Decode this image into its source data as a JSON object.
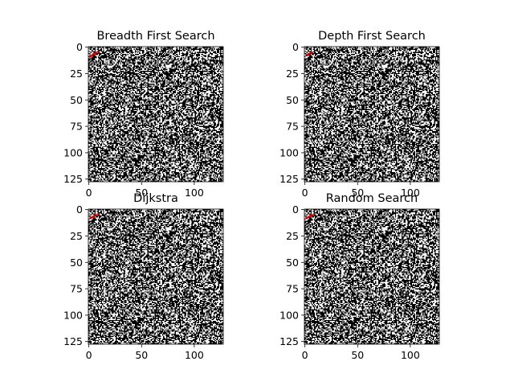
{
  "chart_data": [
    {
      "type": "heatmap",
      "title": "Breadth First Search",
      "colormap": "binary image: black = wall, white = open, red = explored path",
      "colors": {
        "wall": "#000000",
        "open": "#ffffff",
        "path": "#d40000"
      },
      "xlim": [
        0,
        127
      ],
      "ylim": [
        127,
        0
      ],
      "xticks": [
        "0",
        "50",
        "100"
      ],
      "yticks": [
        "0",
        "25",
        "50",
        "75",
        "100",
        "125"
      ],
      "grid": false,
      "path_cells": [
        [
          1,
          9
        ],
        [
          2,
          8
        ],
        [
          3,
          7
        ],
        [
          4,
          6
        ],
        [
          5,
          6
        ],
        [
          6,
          5
        ],
        [
          7,
          5
        ],
        [
          8,
          4
        ],
        [
          9,
          4
        ],
        [
          3,
          8
        ],
        [
          5,
          7
        ]
      ]
    },
    {
      "type": "heatmap",
      "title": "Depth First Search",
      "colormap": "binary image: black = wall, white = open, red = explored path",
      "colors": {
        "wall": "#000000",
        "open": "#ffffff",
        "path": "#d40000"
      },
      "xlim": [
        0,
        127
      ],
      "ylim": [
        127,
        0
      ],
      "xticks": [
        "0",
        "50",
        "100"
      ],
      "yticks": [
        "0",
        "25",
        "50",
        "75",
        "100",
        "125"
      ],
      "grid": false,
      "path_cells": [
        [
          2,
          7
        ],
        [
          3,
          6
        ],
        [
          4,
          6
        ],
        [
          5,
          5
        ],
        [
          6,
          5
        ],
        [
          7,
          5
        ],
        [
          3,
          7
        ]
      ]
    },
    {
      "type": "heatmap",
      "title": "Dijkstra",
      "colormap": "binary image: black = wall, white = open, red = explored path",
      "colors": {
        "wall": "#000000",
        "open": "#ffffff",
        "path": "#d40000"
      },
      "xlim": [
        0,
        127
      ],
      "ylim": [
        127,
        0
      ],
      "xticks": [
        "0",
        "50",
        "100"
      ],
      "yticks": [
        "0",
        "25",
        "50",
        "75",
        "100",
        "125"
      ],
      "grid": false,
      "path_cells": [
        [
          1,
          8
        ],
        [
          2,
          7
        ],
        [
          3,
          7
        ],
        [
          4,
          6
        ],
        [
          5,
          5
        ],
        [
          6,
          5
        ],
        [
          7,
          5
        ],
        [
          8,
          4
        ],
        [
          9,
          4
        ],
        [
          4,
          7
        ]
      ]
    },
    {
      "type": "heatmap",
      "title": "Random Search",
      "colormap": "binary image: black = wall, white = open, red = explored path",
      "colors": {
        "wall": "#000000",
        "open": "#ffffff",
        "path": "#d40000"
      },
      "xlim": [
        0,
        127
      ],
      "ylim": [
        127,
        0
      ],
      "xticks": [
        "0",
        "50",
        "100"
      ],
      "yticks": [
        "0",
        "25",
        "50",
        "75",
        "100",
        "125"
      ],
      "grid": false,
      "path_cells": [
        [
          1,
          8
        ],
        [
          2,
          7
        ],
        [
          3,
          7
        ],
        [
          4,
          6
        ],
        [
          5,
          5
        ],
        [
          6,
          5
        ],
        [
          7,
          5
        ],
        [
          8,
          4
        ],
        [
          5,
          6
        ]
      ]
    }
  ]
}
